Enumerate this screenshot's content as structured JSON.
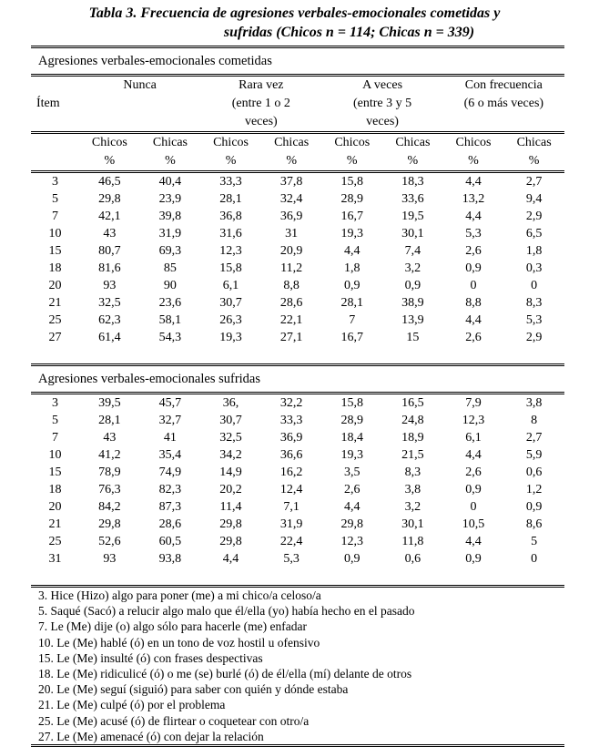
{
  "title": {
    "line1": "Tabla 3. Frecuencia de agresiones verbales-emocionales cometidas y",
    "line2": "sufridas (Chicos n = 114; Chicas n = 339)"
  },
  "header": {
    "item": "Ítem",
    "groups": [
      {
        "l1": "Nunca",
        "l2": "",
        "l3": ""
      },
      {
        "l1": "Rara vez",
        "l2": "(entre 1 o 2",
        "l3": "veces)"
      },
      {
        "l1": "A veces",
        "l2": "(entre 3 y 5",
        "l3": "veces)"
      },
      {
        "l1": "Con frecuencia",
        "l2": "(6 o más veces)",
        "l3": ""
      }
    ],
    "sub": [
      "Chicos",
      "Chicas",
      "Chicos",
      "Chicas",
      "Chicos",
      "Chicas",
      "Chicos",
      "Chicas"
    ],
    "pct": "%"
  },
  "sections": [
    {
      "label": "Agresiones verbales-emocionales cometidas",
      "rows": [
        [
          "3",
          "46,5",
          "40,4",
          "33,3",
          "37,8",
          "15,8",
          "18,3",
          "4,4",
          "2,7"
        ],
        [
          "5",
          "29,8",
          "23,9",
          "28,1",
          "32,4",
          "28,9",
          "33,6",
          "13,2",
          "9,4"
        ],
        [
          "7",
          "42,1",
          "39,8",
          "36,8",
          "36,9",
          "16,7",
          "19,5",
          "4,4",
          "2,9"
        ],
        [
          "10",
          "43",
          "31,9",
          "31,6",
          "31",
          "19,3",
          "30,1",
          "5,3",
          "6,5"
        ],
        [
          "15",
          "80,7",
          "69,3",
          "12,3",
          "20,9",
          "4,4",
          "7,4",
          "2,6",
          "1,8"
        ],
        [
          "18",
          "81,6",
          "85",
          "15,8",
          "11,2",
          "1,8",
          "3,2",
          "0,9",
          "0,3"
        ],
        [
          "20",
          "93",
          "90",
          "6,1",
          "8,8",
          "0,9",
          "0,9",
          "0",
          "0"
        ],
        [
          "21",
          "32,5",
          "23,6",
          "30,7",
          "28,6",
          "28,1",
          "38,9",
          "8,8",
          "8,3"
        ],
        [
          "25",
          "62,3",
          "58,1",
          "26,3",
          "22,1",
          "7",
          "13,9",
          "4,4",
          "5,3"
        ],
        [
          "27",
          "61,4",
          "54,3",
          "19,3",
          "27,1",
          "16,7",
          "15",
          "2,6",
          "2,9"
        ]
      ]
    },
    {
      "label": "Agresiones verbales-emocionales sufridas",
      "rows": [
        [
          "3",
          "39,5",
          "45,7",
          "36,",
          "32,2",
          "15,8",
          "16,5",
          "7,9",
          "3,8"
        ],
        [
          "5",
          "28,1",
          "32,7",
          "30,7",
          "33,3",
          "28,9",
          "24,8",
          "12,3",
          "8"
        ],
        [
          "7",
          "43",
          "41",
          "32,5",
          "36,9",
          "18,4",
          "18,9",
          "6,1",
          "2,7"
        ],
        [
          "10",
          "41,2",
          "35,4",
          "34,2",
          "36,6",
          "19,3",
          "21,5",
          "4,4",
          "5,9"
        ],
        [
          "15",
          "78,9",
          "74,9",
          "14,9",
          "16,2",
          "3,5",
          "8,3",
          "2,6",
          "0,6"
        ],
        [
          "18",
          "76,3",
          "82,3",
          "20,2",
          "12,4",
          "2,6",
          "3,8",
          "0,9",
          "1,2"
        ],
        [
          "20",
          "84,2",
          "87,3",
          "11,4",
          "7,1",
          "4,4",
          "3,2",
          "0",
          "0,9"
        ],
        [
          "21",
          "29,8",
          "28,6",
          "29,8",
          "31,9",
          "29,8",
          "30,1",
          "10,5",
          "8,6"
        ],
        [
          "25",
          "52,6",
          "60,5",
          "29,8",
          "22,4",
          "12,3",
          "11,8",
          "4,4",
          "5"
        ],
        [
          "31",
          "93",
          "93,8",
          "4,4",
          "5,3",
          "0,9",
          "0,6",
          "0,9",
          "0"
        ]
      ]
    }
  ],
  "notes": [
    "3.  Hice (Hizo) algo para poner (me) a mi chico/a celoso/a",
    "5.  Saqué (Sacó) a relucir algo malo que él/ella (yo) había hecho en el pasado",
    "7.  Le (Me) dije (o) algo sólo para hacerle (me) enfadar",
    "10. Le (Me) hablé (ó) en un tono de voz hostil u ofensivo",
    "15. Le (Me) insulté (ó) con frases despectivas",
    "18. Le (Me) ridiculicé (ó) o me (se) burlé (ó) de él/ella (mí) delante de otros",
    "20. Le (Me)  seguí (siguió) para saber con quién y dónde estaba",
    "21. Le (Me) culpé (ó) por el problema",
    "25. Le (Me) acusé (ó) de flirtear o coquetear con otro/a",
    "27. Le (Me) amenacé (ó) con dejar la relación"
  ]
}
